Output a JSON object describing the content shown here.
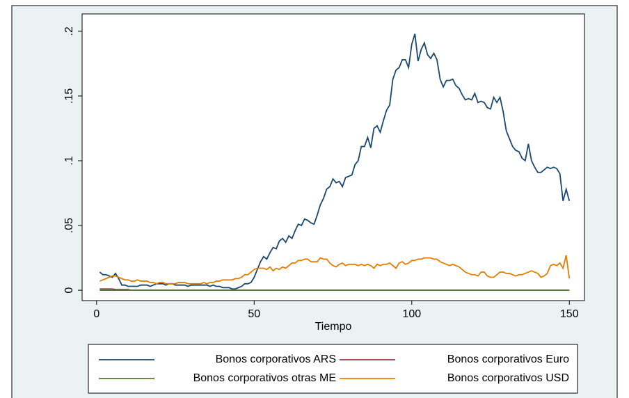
{
  "chart_data": {
    "type": "line",
    "x_label": "Tiempo",
    "x": [
      1,
      2,
      3,
      4,
      5,
      6,
      7,
      8,
      9,
      10,
      11,
      12,
      13,
      14,
      15,
      16,
      17,
      18,
      19,
      20,
      21,
      22,
      23,
      24,
      25,
      26,
      27,
      28,
      29,
      30,
      31,
      32,
      33,
      34,
      35,
      36,
      37,
      38,
      39,
      40,
      41,
      42,
      43,
      44,
      45,
      46,
      47,
      48,
      49,
      50,
      51,
      52,
      53,
      54,
      55,
      56,
      57,
      58,
      59,
      60,
      61,
      62,
      63,
      64,
      65,
      66,
      67,
      68,
      69,
      70,
      71,
      72,
      73,
      74,
      75,
      76,
      77,
      78,
      79,
      80,
      81,
      82,
      83,
      84,
      85,
      86,
      87,
      88,
      89,
      90,
      91,
      92,
      93,
      94,
      95,
      96,
      97,
      98,
      99,
      100,
      101,
      102,
      103,
      104,
      105,
      106,
      107,
      108,
      109,
      110,
      111,
      112,
      113,
      114,
      115,
      116,
      117,
      118,
      119,
      120,
      121,
      122,
      123,
      124,
      125,
      126,
      127,
      128,
      129,
      130,
      131,
      132,
      133,
      134,
      135,
      136,
      137,
      138,
      139,
      140,
      141,
      142,
      143,
      144,
      145,
      146,
      147,
      148,
      149,
      150
    ],
    "series": [
      {
        "name": "Bonos corporativos ARS",
        "color": "#1a476f",
        "values": [
          0.014,
          0.012,
          0.012,
          0.011,
          0.01,
          0.013,
          0.009,
          0.004,
          0.004,
          0.003,
          0.003,
          0.003,
          0.003,
          0.004,
          0.004,
          0.004,
          0.003,
          0.004,
          0.005,
          0.005,
          0.005,
          0.004,
          0.005,
          0.005,
          0.004,
          0.004,
          0.004,
          0.004,
          0.003,
          0.004,
          0.004,
          0.004,
          0.004,
          0.004,
          0.004,
          0.003,
          0.004,
          0.003,
          0.003,
          0.002,
          0.002,
          0.002,
          0.001,
          0.001,
          0.002,
          0.003,
          0.005,
          0.005,
          0.006,
          0.01,
          0.016,
          0.022,
          0.026,
          0.024,
          0.029,
          0.033,
          0.032,
          0.038,
          0.04,
          0.037,
          0.042,
          0.04,
          0.046,
          0.051,
          0.05,
          0.055,
          0.054,
          0.052,
          0.051,
          0.058,
          0.066,
          0.071,
          0.078,
          0.08,
          0.086,
          0.083,
          0.084,
          0.08,
          0.087,
          0.088,
          0.089,
          0.097,
          0.1,
          0.111,
          0.111,
          0.118,
          0.11,
          0.125,
          0.127,
          0.122,
          0.131,
          0.139,
          0.143,
          0.163,
          0.17,
          0.172,
          0.178,
          0.178,
          0.172,
          0.19,
          0.198,
          0.177,
          0.186,
          0.191,
          0.182,
          0.179,
          0.183,
          0.178,
          0.163,
          0.157,
          0.162,
          0.162,
          0.163,
          0.158,
          0.156,
          0.151,
          0.147,
          0.148,
          0.147,
          0.152,
          0.145,
          0.146,
          0.145,
          0.141,
          0.14,
          0.149,
          0.145,
          0.149,
          0.138,
          0.123,
          0.117,
          0.111,
          0.108,
          0.107,
          0.102,
          0.1,
          0.113,
          0.1,
          0.095,
          0.091,
          0.091,
          0.093,
          0.095,
          0.094,
          0.095,
          0.094,
          0.09,
          0.069,
          0.078,
          0.069
        ]
      },
      {
        "name": "Bonos corporativos Euro",
        "color": "#90353b",
        "values": [
          0.001,
          0.001,
          0.001,
          0.001,
          0.001,
          0.0005,
          0.0005,
          0.0005,
          0.0005,
          0.0005,
          0,
          0,
          0,
          0,
          0,
          0,
          0,
          0,
          0,
          0,
          0,
          0,
          0,
          0,
          0,
          0,
          0,
          0,
          0,
          0,
          0,
          0,
          0,
          0,
          0,
          0,
          0,
          0,
          0,
          0,
          0,
          0,
          0,
          0,
          0,
          0,
          0,
          0,
          0,
          0,
          0,
          0,
          0,
          0,
          0,
          0,
          0,
          0,
          0,
          0,
          0,
          0,
          0,
          0,
          0,
          0,
          0,
          0,
          0,
          0,
          0,
          0,
          0,
          0,
          0,
          0,
          0,
          0,
          0,
          0,
          0,
          0,
          0,
          0,
          0,
          0,
          0,
          0,
          0,
          0,
          0,
          0,
          0,
          0,
          0,
          0,
          0,
          0,
          0,
          0,
          0,
          0,
          0,
          0,
          0,
          0,
          0,
          0,
          0,
          0,
          0,
          0,
          0,
          0,
          0,
          0,
          0,
          0,
          0,
          0,
          0,
          0,
          0,
          0,
          0,
          0,
          0,
          0,
          0,
          0,
          0,
          0,
          0,
          0,
          0,
          0,
          0,
          0,
          0,
          0,
          0,
          0,
          0,
          0,
          0,
          0,
          0,
          0,
          0,
          0
        ]
      },
      {
        "name": "Bonos corporativos otras ME",
        "color": "#55752f",
        "values": [
          0,
          0,
          0,
          0,
          0,
          0,
          0,
          0,
          0,
          0,
          0,
          0,
          0,
          0,
          0,
          0,
          0,
          0,
          0,
          0,
          0,
          0,
          0,
          0,
          0,
          0,
          0,
          0,
          0,
          0,
          0,
          0,
          0,
          0,
          0,
          0,
          0,
          0,
          0,
          0,
          0,
          0,
          0,
          0,
          0,
          0,
          0,
          0,
          0,
          0,
          0,
          0,
          0,
          0,
          0,
          0,
          0,
          0,
          0,
          0,
          0,
          0,
          0,
          0,
          0,
          0,
          0,
          0,
          0,
          0,
          0,
          0,
          0,
          0,
          0,
          0,
          0,
          0,
          0,
          0,
          0,
          0,
          0,
          0,
          0,
          0,
          0,
          0,
          0,
          0,
          0,
          0,
          0,
          0,
          0,
          0,
          0,
          0,
          0,
          0,
          0,
          0,
          0,
          0,
          0,
          0,
          0,
          0,
          0,
          0,
          0,
          0,
          0,
          0,
          0,
          0,
          0,
          0,
          0,
          0,
          0,
          0,
          0,
          0,
          0,
          0,
          0,
          0,
          0,
          0,
          0,
          0,
          0,
          0,
          0,
          0,
          0,
          0,
          0,
          0,
          0,
          0,
          0,
          0,
          0,
          0,
          0,
          0,
          0,
          0
        ]
      },
      {
        "name": "Bonos corporativos USD",
        "color": "#e37e00",
        "values": [
          0.007,
          0.008,
          0.009,
          0.01,
          0.011,
          0.011,
          0.01,
          0.009,
          0.008,
          0.008,
          0.007,
          0.007,
          0.008,
          0.007,
          0.007,
          0.007,
          0.006,
          0.006,
          0.005,
          0.006,
          0.006,
          0.005,
          0.005,
          0.005,
          0.005,
          0.006,
          0.006,
          0.006,
          0.005,
          0.005,
          0.005,
          0.005,
          0.005,
          0.006,
          0.005,
          0.006,
          0.006,
          0.007,
          0.007,
          0.008,
          0.008,
          0.008,
          0.008,
          0.009,
          0.009,
          0.01,
          0.012,
          0.012,
          0.014,
          0.016,
          0.017,
          0.017,
          0.017,
          0.016,
          0.018,
          0.015,
          0.017,
          0.016,
          0.018,
          0.017,
          0.019,
          0.021,
          0.021,
          0.023,
          0.023,
          0.024,
          0.024,
          0.022,
          0.022,
          0.022,
          0.025,
          0.024,
          0.024,
          0.021,
          0.019,
          0.018,
          0.02,
          0.021,
          0.019,
          0.02,
          0.02,
          0.02,
          0.019,
          0.02,
          0.019,
          0.02,
          0.019,
          0.017,
          0.02,
          0.019,
          0.02,
          0.02,
          0.021,
          0.019,
          0.017,
          0.021,
          0.022,
          0.02,
          0.021,
          0.023,
          0.023,
          0.024,
          0.024,
          0.025,
          0.025,
          0.025,
          0.024,
          0.024,
          0.022,
          0.021,
          0.02,
          0.019,
          0.02,
          0.019,
          0.018,
          0.016,
          0.014,
          0.013,
          0.012,
          0.012,
          0.011,
          0.014,
          0.014,
          0.011,
          0.01,
          0.01,
          0.012,
          0.014,
          0.014,
          0.013,
          0.013,
          0.012,
          0.011,
          0.012,
          0.012,
          0.013,
          0.014,
          0.015,
          0.014,
          0.013,
          0.01,
          0.011,
          0.013,
          0.019,
          0.02,
          0.019,
          0.021,
          0.017,
          0.027,
          0.009
        ]
      }
    ],
    "xlim": [
      -4.6,
      154.8
    ],
    "xticks": [
      0,
      50,
      100,
      150
    ],
    "ylim": [
      -0.008,
      0.2134
    ],
    "yticks": [
      0,
      {
        "value": 0.05,
        "label": ".05"
      },
      {
        "value": 0.1,
        "label": ".1"
      },
      {
        "value": 0.15,
        "label": ".15"
      },
      {
        "value": 0.2,
        "label": ".2"
      }
    ],
    "grid": false,
    "legend": "bottom"
  }
}
